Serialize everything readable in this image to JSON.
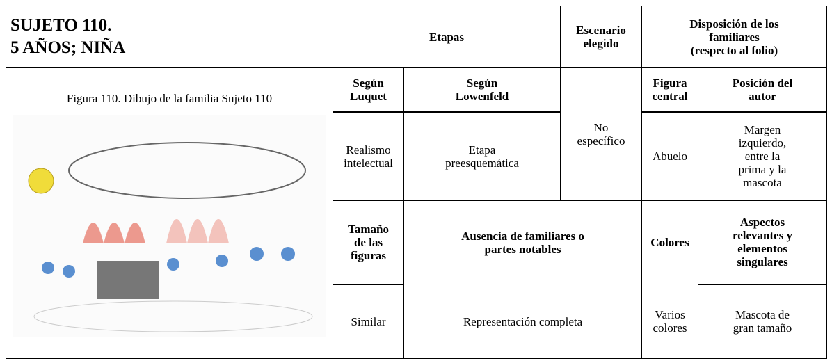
{
  "header": {
    "title_lines": [
      "SUJETO 110.",
      "5 AÑOS; NIÑA"
    ],
    "etapas": "Etapas",
    "escenario": [
      "Escenario",
      "elegido"
    ],
    "disposicion": [
      "Disposición de los",
      "familiares",
      "(respecto al folio)"
    ]
  },
  "figure": {
    "caption": "Figura 110. Dibujo de la familia Sujeto 110"
  },
  "subheaders": {
    "luquet": [
      "Según",
      "Luquet"
    ],
    "lowenfeld": [
      "Según",
      "Lowenfeld"
    ],
    "figura_central": [
      "Figura",
      "central"
    ],
    "posicion": [
      "Posición del",
      "autor"
    ]
  },
  "row1": {
    "luquet": [
      "Realismo",
      "intelectual"
    ],
    "lowenfeld": [
      "Etapa",
      "preesquemática"
    ],
    "escenario": [
      "No",
      "específico"
    ],
    "figura_central": "Abuelo",
    "posicion": [
      "Margen",
      "izquierdo,",
      "entre la",
      "prima y la",
      "mascota"
    ]
  },
  "subheaders2": {
    "tamano": [
      "Tamaño",
      "de las",
      "figuras"
    ],
    "ausencia": [
      "Ausencia de familiares o",
      "partes notables"
    ],
    "colores": "Colores",
    "aspectos": [
      "Aspectos",
      "relevantes y",
      "elementos",
      "singulares"
    ]
  },
  "row2": {
    "tamano": "Similar",
    "ausencia": "Representación completa",
    "colores": [
      "Varios",
      "colores"
    ],
    "aspectos": [
      "Mascota de",
      "gran tamaño"
    ]
  }
}
